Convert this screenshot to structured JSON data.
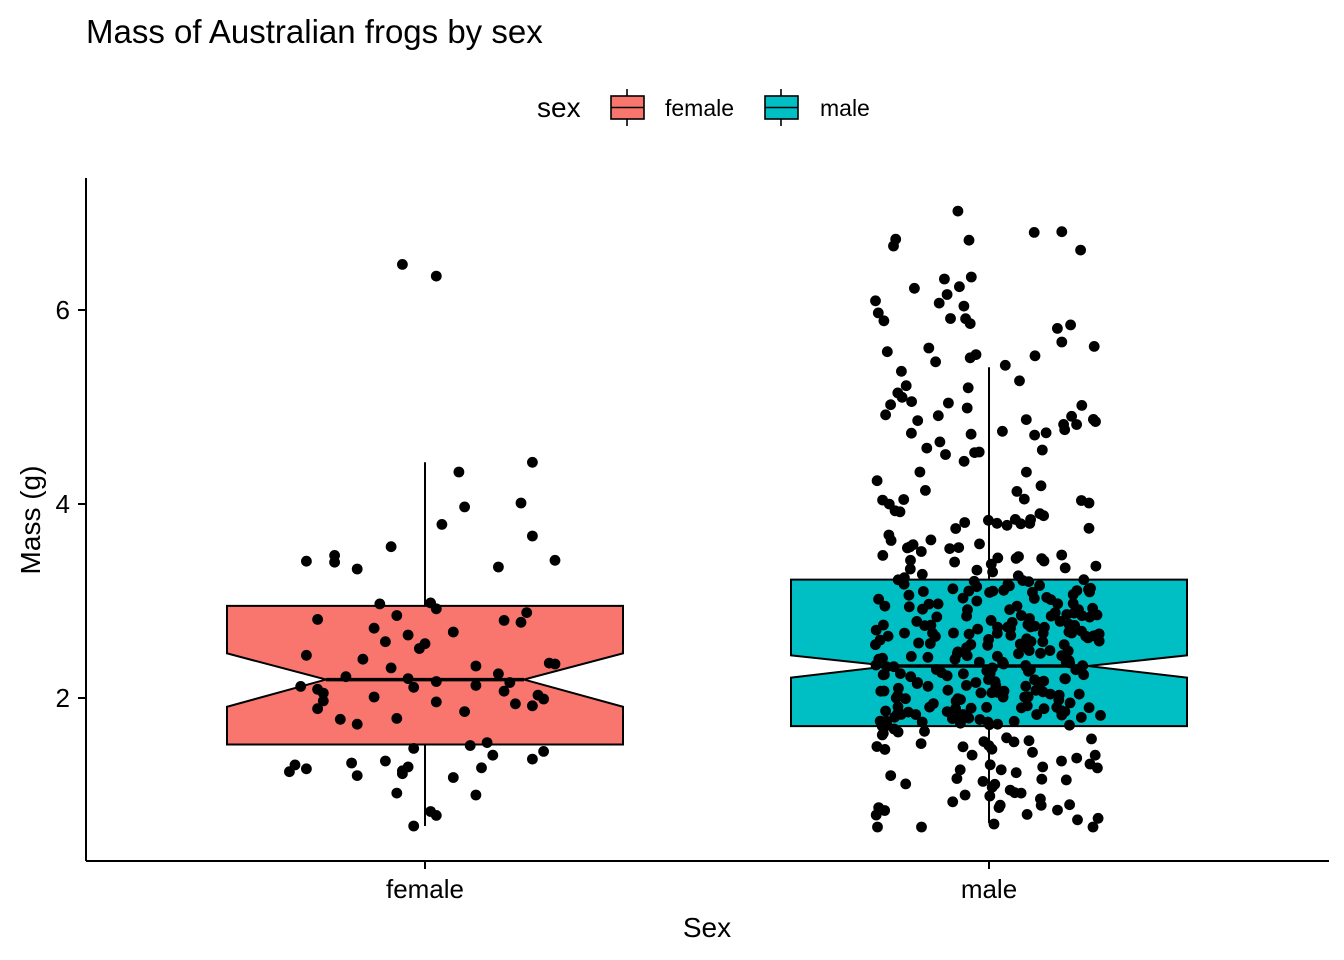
{
  "chart_data": {
    "type": "box",
    "title": "Mass of Australian frogs by sex",
    "xlabel": "Sex",
    "ylabel": "Mass (g)",
    "categories": [
      "female",
      "male"
    ],
    "yticks": [
      2,
      4,
      6
    ],
    "ylim": [
      0.35,
      7.35
    ],
    "legend": {
      "title": "sex",
      "position": "top",
      "entries": [
        "female",
        "male"
      ]
    },
    "grid": false,
    "notched": true,
    "colors": {
      "female": "#F8766D",
      "male": "#00BFC4"
    },
    "boxes": [
      {
        "name": "female",
        "q1": 1.52,
        "median": 2.19,
        "q3": 2.95,
        "whisker_low": 0.68,
        "whisker_high": 4.43,
        "notch_low": 1.91,
        "notch_high": 2.46
      },
      {
        "name": "male",
        "q1": 1.71,
        "median": 2.33,
        "q3": 3.22,
        "whisker_low": 0.71,
        "whisker_high": 5.41,
        "notch_low": 2.21,
        "notch_high": 2.44
      }
    ],
    "points": {
      "female": {
        "n": 80,
        "y": [
          6.47,
          6.35,
          4.43,
          4.33,
          3.97,
          4.01,
          3.79,
          3.67,
          3.56,
          3.47,
          3.41,
          3.4,
          3.42,
          3.35,
          3.33,
          2.97,
          2.98,
          2.92,
          2.85,
          2.81,
          2.8,
          2.78,
          2.65,
          2.56,
          2.51,
          2.44,
          2.4,
          2.35,
          2.33,
          2.31,
          2.25,
          2.22,
          2.2,
          2.17,
          2.13,
          2.11,
          2.09,
          2.07,
          2.05,
          2.03,
          1.99,
          1.97,
          1.96,
          1.94,
          1.92,
          1.89,
          1.79,
          1.73,
          1.54,
          1.51,
          1.45,
          1.37,
          1.35,
          1.33,
          1.31,
          1.29,
          1.27,
          1.25,
          1.24,
          1.22,
          1.2,
          1.02,
          1.0,
          0.83,
          0.79,
          0.68,
          2.88,
          2.68,
          2.58,
          2.36,
          2.16,
          2.12,
          2.01,
          1.86,
          1.78,
          1.48,
          1.41,
          1.28,
          1.18,
          2.72
        ],
        "x_offsets": [
          -0.04,
          0.02,
          0.19,
          0.06,
          0.07,
          0.17,
          0.03,
          0.19,
          -0.06,
          -0.16,
          -0.21,
          -0.16,
          0.23,
          0.13,
          -0.12,
          -0.08,
          0.01,
          0.02,
          -0.05,
          -0.19,
          0.14,
          0.17,
          -0.03,
          0.0,
          -0.01,
          -0.21,
          -0.11,
          0.23,
          0.09,
          -0.06,
          0.13,
          -0.14,
          -0.03,
          0.02,
          0.09,
          -0.02,
          -0.19,
          0.14,
          -0.18,
          0.2,
          0.21,
          -0.18,
          0.02,
          0.16,
          0.19,
          -0.19,
          -0.05,
          -0.12,
          0.11,
          0.08,
          0.21,
          0.19,
          -0.07,
          -0.13,
          -0.23,
          -0.03,
          -0.21,
          -0.04,
          -0.24,
          -0.04,
          -0.12,
          -0.05,
          0.09,
          0.01,
          0.02,
          -0.02,
          0.18,
          0.05,
          -0.07,
          0.22,
          0.15,
          -0.22,
          -0.09,
          0.07,
          -0.15,
          -0.02,
          0.12,
          0.1,
          0.05,
          -0.09
        ]
      },
      "male": {
        "n": 400,
        "y_sample": [
          7.02,
          6.8,
          6.73,
          6.72,
          6.66,
          6.32,
          6.24,
          6.16,
          6.04,
          5.97,
          5.91,
          5.86,
          5.81,
          5.67,
          5.57,
          5.54,
          5.43,
          5.27,
          5.22,
          5.1,
          4.99,
          4.92,
          4.91,
          4.87,
          4.86,
          4.85,
          4.82,
          4.75,
          4.73,
          4.72,
          4.71,
          4.64,
          4.53,
          4.51,
          4.44,
          4.33,
          4.24,
          4.14,
          4.13,
          4.05,
          4.04,
          4.01,
          3.93,
          3.92,
          3.9,
          3.84,
          3.8,
          3.78,
          3.75,
          3.68,
          3.63,
          3.58,
          3.55,
          3.54,
          3.51,
          3.47,
          3.42,
          3.38,
          3.36,
          3.33,
          3.3,
          3.26,
          3.24,
          3.22,
          3.2,
          3.16,
          3.12,
          3.09,
          3.06,
          3.03,
          3.0,
          2.97,
          2.94,
          2.91,
          2.88,
          2.85,
          2.82,
          2.79,
          2.76,
          2.73,
          2.7,
          2.67,
          2.64,
          2.61,
          2.58,
          2.55,
          2.52,
          2.49,
          2.46,
          2.43,
          2.4,
          2.37,
          2.34,
          2.31,
          2.28,
          2.25,
          2.22,
          2.19,
          2.16,
          2.13,
          2.1,
          2.07,
          2.04,
          2.01,
          1.98,
          1.95,
          1.92,
          1.89,
          1.86,
          1.83,
          1.8,
          1.77,
          1.74,
          1.71,
          1.68,
          1.65,
          1.62,
          1.59,
          1.56,
          1.53,
          1.5,
          1.47,
          1.44,
          1.41,
          1.38,
          1.35,
          1.32,
          1.29,
          1.26,
          1.23,
          1.2,
          1.17,
          1.14,
          1.11,
          1.08,
          1.05,
          1.02,
          0.99,
          0.96,
          0.93,
          0.9,
          0.87,
          0.84,
          0.8,
          0.76,
          0.67
        ]
      }
    }
  }
}
